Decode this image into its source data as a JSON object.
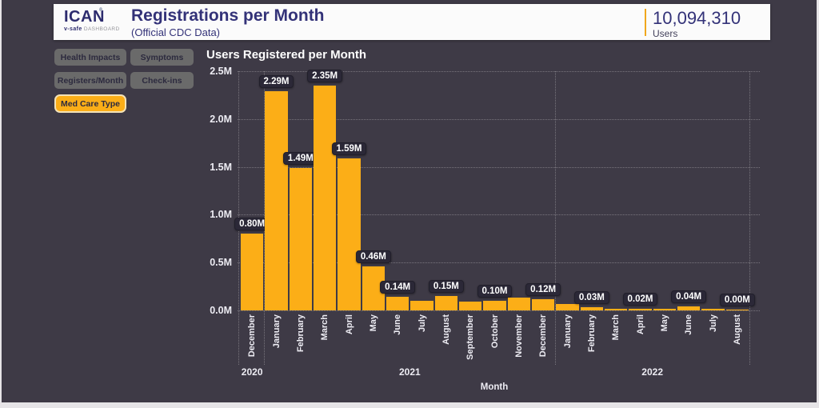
{
  "header": {
    "logo_main": "ICAN",
    "logo_sub_bold": "v-safe",
    "logo_sub_rest": " DASHBOARD",
    "title": "Registrations per Month",
    "subtitle": "(Official CDC Data)",
    "stat_value": "10,094,310",
    "stat_label": "Users"
  },
  "nav": {
    "buttons": [
      {
        "label": "Health Impacts",
        "active": false
      },
      {
        "label": "Symptoms",
        "active": false
      },
      {
        "label": "Registers/Month",
        "active": false
      },
      {
        "label": "Check-ins",
        "active": false
      },
      {
        "label": "Med Care Type",
        "active": true
      }
    ]
  },
  "chart_data": {
    "type": "bar",
    "title": "Users Registered per Month",
    "xlabel": "Month",
    "ylabel": "",
    "ylim": [
      0,
      2.5
    ],
    "yticks": [
      0,
      0.5,
      1.0,
      1.5,
      2.0,
      2.5
    ],
    "ytick_labels": [
      "0.0M",
      "0.5M",
      "1.0M",
      "1.5M",
      "2.0M",
      "2.5M"
    ],
    "grid": "dotted",
    "legend": "none",
    "bar_color": "#fcae17",
    "categories": [
      "December",
      "January",
      "February",
      "March",
      "April",
      "May",
      "June",
      "July",
      "August",
      "September",
      "October",
      "November",
      "December",
      "January",
      "February",
      "March",
      "April",
      "May",
      "June",
      "July",
      "August"
    ],
    "values": [
      0.8,
      2.29,
      1.49,
      2.35,
      1.59,
      0.46,
      0.14,
      0.1,
      0.15,
      0.09,
      0.1,
      0.13,
      0.12,
      0.07,
      0.03,
      0.02,
      0.02,
      0.02,
      0.04,
      0.02,
      0.0
    ],
    "bar_labels": [
      "0.80M",
      "2.29M",
      "1.49M",
      "2.35M",
      "1.59M",
      "0.46M",
      "0.14M",
      null,
      "0.15M",
      null,
      "0.10M",
      null,
      "0.12M",
      null,
      "0.03M",
      null,
      "0.02M",
      null,
      "0.04M",
      null,
      "0.00M"
    ],
    "year_groups": [
      {
        "label": "2020",
        "count": 1
      },
      {
        "label": "2021",
        "count": 12
      },
      {
        "label": "2022",
        "count": 8
      }
    ]
  }
}
